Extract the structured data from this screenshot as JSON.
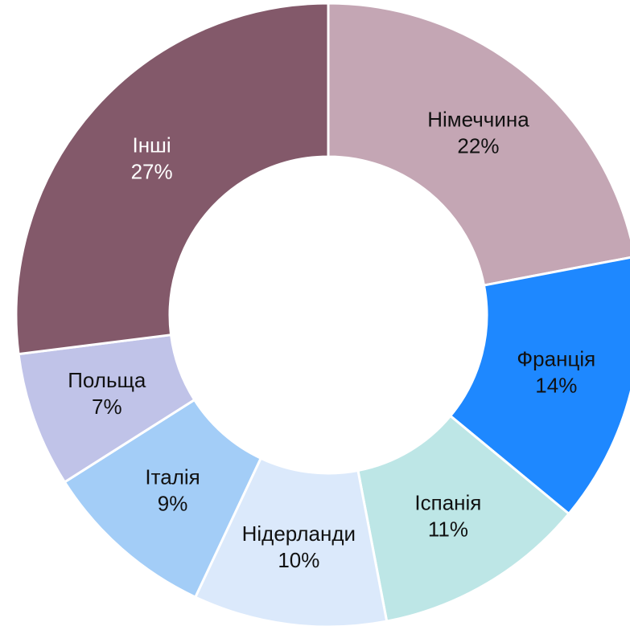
{
  "chart_data": {
    "type": "donut",
    "categories": [
      "Німеччина",
      "Франція",
      "Іспанія",
      "Нідерланди",
      "Італія",
      "Польща",
      "Інші"
    ],
    "values": [
      22,
      14,
      11,
      10,
      9,
      7,
      27
    ],
    "value_labels": [
      "22%",
      "14%",
      "11%",
      "10%",
      "9%",
      "7%",
      "27%"
    ],
    "colors": [
      "#c4a6b4",
      "#1e88ff",
      "#bde6e6",
      "#dbe9fb",
      "#a3cdf7",
      "#c0c3e8",
      "#83596a"
    ]
  }
}
